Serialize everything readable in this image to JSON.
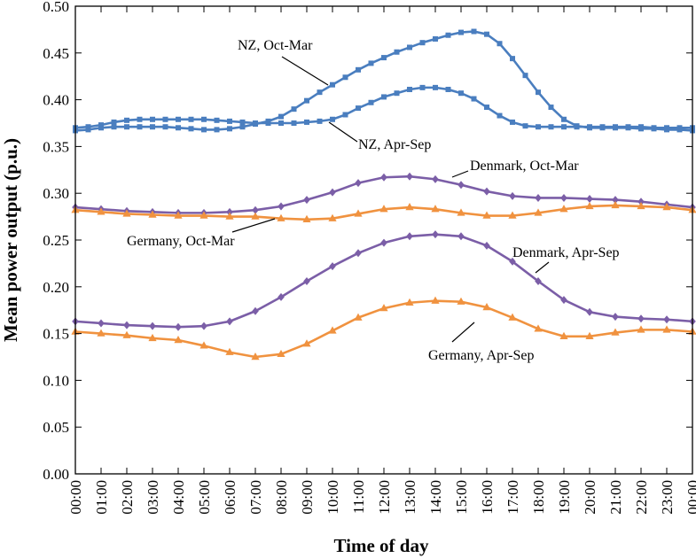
{
  "chart_data": {
    "type": "line",
    "title": "",
    "xlabel": "Time of day",
    "ylabel": "Mean power output (p.u.)",
    "ylim": [
      0,
      0.5
    ],
    "yticks": [
      "0.00",
      "0.05",
      "0.10",
      "0.15",
      "0.20",
      "0.25",
      "0.30",
      "0.35",
      "0.40",
      "0.45",
      "0.50"
    ],
    "xticks": [
      "00:00",
      "01:00",
      "02:00",
      "03:00",
      "04:00",
      "05:00",
      "06:00",
      "07:00",
      "08:00",
      "09:00",
      "10:00",
      "11:00",
      "12:00",
      "13:00",
      "14:00",
      "15:00",
      "16:00",
      "17:00",
      "18:00",
      "19:00",
      "20:00",
      "21:00",
      "22:00",
      "23:00",
      "00:00"
    ],
    "grid": false,
    "legend": "none (series labelled by annotations)",
    "series": [
      {
        "name": "NZ, Oct-Mar",
        "color": "#4a7ebf",
        "marker": "square",
        "x": [
          0,
          0.5,
          1,
          1.5,
          2,
          2.5,
          3,
          3.5,
          4,
          4.5,
          5,
          5.5,
          6,
          6.5,
          7,
          7.5,
          8,
          8.5,
          9,
          9.5,
          10,
          10.5,
          11,
          11.5,
          12,
          12.5,
          13,
          13.5,
          14,
          14.5,
          15,
          15.5,
          16,
          16.5,
          17,
          17.5,
          18,
          18.5,
          19,
          19.5,
          20,
          20.5,
          21,
          21.5,
          22,
          22.5,
          23,
          23.5,
          24
        ],
        "values": [
          0.367,
          0.368,
          0.37,
          0.371,
          0.371,
          0.371,
          0.371,
          0.371,
          0.37,
          0.369,
          0.368,
          0.368,
          0.369,
          0.371,
          0.374,
          0.377,
          0.382,
          0.39,
          0.399,
          0.408,
          0.416,
          0.424,
          0.432,
          0.439,
          0.445,
          0.451,
          0.456,
          0.461,
          0.465,
          0.469,
          0.472,
          0.473,
          0.47,
          0.46,
          0.444,
          0.426,
          0.408,
          0.392,
          0.379,
          0.372,
          0.37,
          0.37,
          0.37,
          0.37,
          0.369,
          0.369,
          0.368,
          0.368,
          0.367
        ]
      },
      {
        "name": "NZ, Apr-Sep",
        "color": "#4a7ebf",
        "marker": "square",
        "x": [
          0,
          0.5,
          1,
          1.5,
          2,
          2.5,
          3,
          3.5,
          4,
          4.5,
          5,
          5.5,
          6,
          6.5,
          7,
          7.5,
          8,
          8.5,
          9,
          9.5,
          10,
          10.5,
          11,
          11.5,
          12,
          12.5,
          13,
          13.5,
          14,
          14.5,
          15,
          15.5,
          16,
          16.5,
          17,
          17.5,
          18,
          18.5,
          19,
          19.5,
          20,
          20.5,
          21,
          21.5,
          22,
          22.5,
          23,
          23.5,
          24
        ],
        "values": [
          0.37,
          0.371,
          0.373,
          0.376,
          0.378,
          0.379,
          0.379,
          0.379,
          0.379,
          0.379,
          0.379,
          0.378,
          0.377,
          0.376,
          0.375,
          0.375,
          0.375,
          0.375,
          0.376,
          0.377,
          0.379,
          0.384,
          0.391,
          0.397,
          0.403,
          0.407,
          0.411,
          0.413,
          0.413,
          0.411,
          0.407,
          0.401,
          0.392,
          0.383,
          0.376,
          0.372,
          0.371,
          0.371,
          0.371,
          0.371,
          0.371,
          0.371,
          0.371,
          0.371,
          0.371,
          0.37,
          0.37,
          0.37,
          0.37
        ]
      },
      {
        "name": "Denmark, Oct-Mar",
        "color": "#7b5ea7",
        "marker": "diamond",
        "x": [
          0,
          1,
          2,
          3,
          4,
          5,
          6,
          7,
          8,
          9,
          10,
          11,
          12,
          13,
          14,
          15,
          16,
          17,
          18,
          19,
          20,
          21,
          22,
          23,
          24
        ],
        "values": [
          0.285,
          0.283,
          0.281,
          0.28,
          0.279,
          0.279,
          0.28,
          0.282,
          0.286,
          0.293,
          0.301,
          0.311,
          0.317,
          0.318,
          0.315,
          0.309,
          0.302,
          0.297,
          0.295,
          0.295,
          0.294,
          0.293,
          0.291,
          0.288,
          0.285
        ]
      },
      {
        "name": "Germany, Oct-Mar",
        "color": "#f0923f",
        "marker": "triangle",
        "x": [
          0,
          1,
          2,
          3,
          4,
          5,
          6,
          7,
          8,
          9,
          10,
          11,
          12,
          13,
          14,
          15,
          16,
          17,
          18,
          19,
          20,
          21,
          22,
          23,
          24
        ],
        "values": [
          0.282,
          0.28,
          0.278,
          0.277,
          0.276,
          0.276,
          0.275,
          0.275,
          0.273,
          0.272,
          0.273,
          0.278,
          0.283,
          0.285,
          0.283,
          0.279,
          0.276,
          0.276,
          0.279,
          0.283,
          0.286,
          0.287,
          0.286,
          0.285,
          0.282
        ]
      },
      {
        "name": "Denmark, Apr-Sep",
        "color": "#7b5ea7",
        "marker": "diamond",
        "x": [
          0,
          1,
          2,
          3,
          4,
          5,
          6,
          7,
          8,
          9,
          10,
          11,
          12,
          13,
          14,
          15,
          16,
          17,
          18,
          19,
          20,
          21,
          22,
          23,
          24
        ],
        "values": [
          0.163,
          0.161,
          0.159,
          0.158,
          0.157,
          0.158,
          0.163,
          0.174,
          0.189,
          0.206,
          0.222,
          0.236,
          0.247,
          0.254,
          0.256,
          0.254,
          0.244,
          0.227,
          0.206,
          0.186,
          0.173,
          0.168,
          0.166,
          0.165,
          0.163
        ]
      },
      {
        "name": "Germany, Apr-Sep",
        "color": "#f0923f",
        "marker": "triangle",
        "x": [
          0,
          1,
          2,
          3,
          4,
          5,
          6,
          7,
          8,
          9,
          10,
          11,
          12,
          13,
          14,
          15,
          16,
          17,
          18,
          19,
          20,
          21,
          22,
          23,
          24
        ],
        "values": [
          0.152,
          0.15,
          0.148,
          0.145,
          0.143,
          0.137,
          0.13,
          0.125,
          0.128,
          0.139,
          0.153,
          0.167,
          0.177,
          0.183,
          0.185,
          0.184,
          0.178,
          0.167,
          0.155,
          0.147,
          0.147,
          0.151,
          0.154,
          0.154,
          0.152
        ]
      }
    ],
    "annotations": [
      {
        "text": "NZ, Oct-Mar",
        "x": 10.5,
        "y": 0.449
      },
      {
        "text": "NZ, Apr-Sep",
        "x": 11.2,
        "y": 0.378
      },
      {
        "text": "Denmark, Oct-Mar",
        "x": 14.3,
        "y": 0.306
      },
      {
        "text": "Germany, Oct-Mar",
        "x": 8.1,
        "y": 0.274
      },
      {
        "text": "Denmark, Apr-Sep",
        "x": 18.4,
        "y": 0.231
      },
      {
        "text": "Germany, Apr-Sep",
        "x": 13.9,
        "y": 0.179
      }
    ]
  }
}
